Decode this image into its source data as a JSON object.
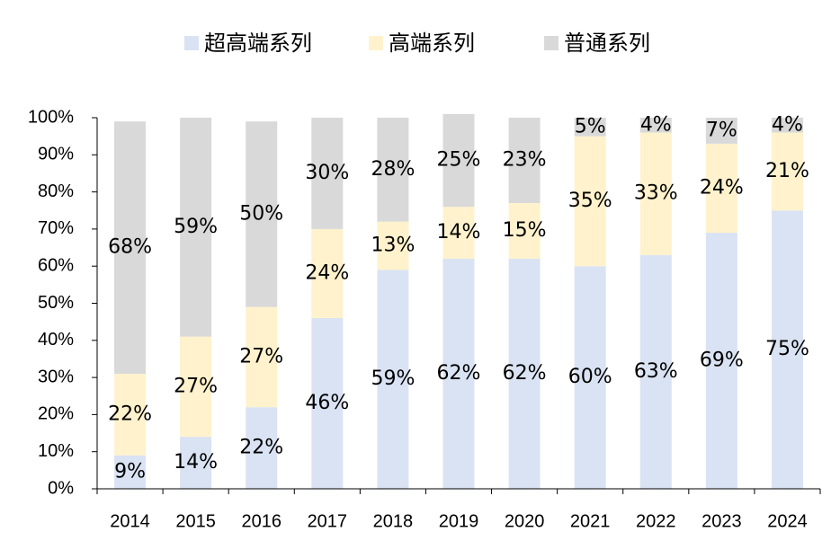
{
  "chart_data": {
    "type": "stacked-bar",
    "categories": [
      "2014",
      "2015",
      "2016",
      "2017",
      "2018",
      "2019",
      "2020",
      "2021",
      "2022",
      "2023",
      "2024"
    ],
    "series": [
      {
        "name": "超高端系列",
        "color": "#dae3f3",
        "values": [
          9,
          14,
          22,
          46,
          59,
          62,
          62,
          60,
          63,
          69,
          75
        ],
        "value_labels": [
          "9%",
          "14%",
          "22%",
          "46%",
          "59%",
          "62%",
          "62%",
          "60%",
          "63%",
          "69%",
          "75%"
        ]
      },
      {
        "name": "高端系列",
        "color": "#fff2cc",
        "values": [
          22,
          27,
          27,
          24,
          13,
          14,
          15,
          35,
          33,
          24,
          21
        ],
        "value_labels": [
          "22%",
          "27%",
          "27%",
          "24%",
          "13%",
          "14%",
          "15%",
          "35%",
          "33%",
          "24%",
          "21%"
        ]
      },
      {
        "name": "普通系列",
        "color": "#d9d9d9",
        "values": [
          68,
          59,
          50,
          30,
          28,
          25,
          23,
          5,
          4,
          7,
          4
        ],
        "value_labels": [
          "68%",
          "59%",
          "50%",
          "30%",
          "28%",
          "25%",
          "23%",
          "5%",
          "4%",
          "7%",
          "4%"
        ]
      }
    ],
    "ylim": [
      0,
      100
    ],
    "yticks": [
      {
        "value": 0,
        "label": "0%"
      },
      {
        "value": 10,
        "label": "10%"
      },
      {
        "value": 20,
        "label": "20%"
      },
      {
        "value": 30,
        "label": "30%"
      },
      {
        "value": 40,
        "label": "40%"
      },
      {
        "value": 50,
        "label": "50%"
      },
      {
        "value": 60,
        "label": "60%"
      },
      {
        "value": 70,
        "label": "70%"
      },
      {
        "value": 80,
        "label": "80%"
      },
      {
        "value": 90,
        "label": "90%"
      },
      {
        "value": 100,
        "label": "100%"
      }
    ],
    "legend": "top"
  }
}
